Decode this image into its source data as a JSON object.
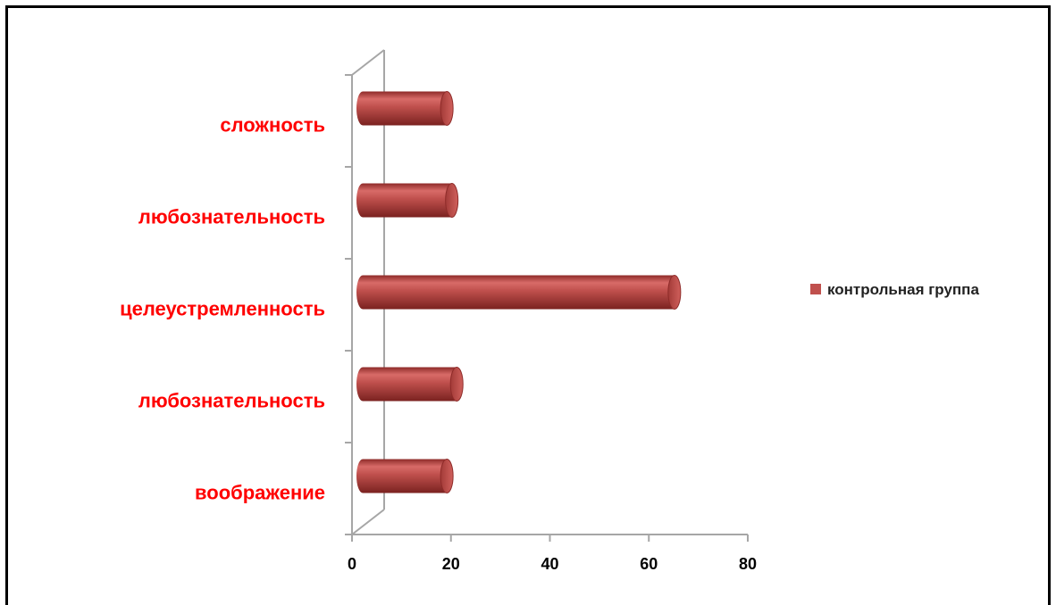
{
  "chart_data": {
    "type": "bar",
    "orientation": "horizontal",
    "style": "3d-cylinder",
    "categories": [
      "воображение",
      "любознательность",
      "целеустремленность",
      "любознательность",
      "сложность"
    ],
    "series": [
      {
        "name": "контрольная группа",
        "values": [
          17,
          19,
          63,
          18,
          17
        ],
        "color": "#c0504d"
      }
    ],
    "xlim": [
      0,
      80
    ],
    "xticks": [
      "0",
      "20",
      "40",
      "60",
      "80"
    ],
    "legend": "right",
    "grid": false
  }
}
